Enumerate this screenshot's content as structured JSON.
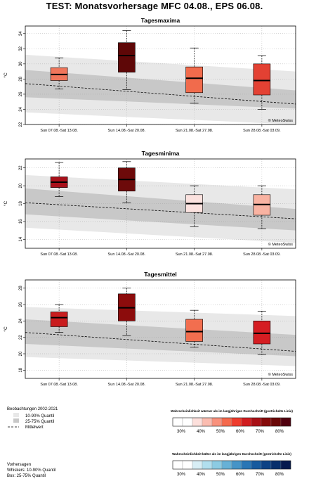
{
  "title": "TEST: Monatsvorhersage  MFC 04.08., EPS 06.08.",
  "copyright": "© MeteoSwiss",
  "chart_data": [
    {
      "type": "box",
      "title": "Tagesmaxima",
      "ylabel": "°C",
      "ylim": [
        22,
        35
      ],
      "yticks": [
        22,
        24,
        26,
        28,
        30,
        32,
        34
      ],
      "grid": true,
      "categories": [
        "Sun 07.08.-Sat 13.08.",
        "Sun 14.08.-Sat 20.08.",
        "Sun 21.08.-Sat 27.08.",
        "Sun 28.08.-Sat 03.09."
      ],
      "boxes": [
        {
          "whisker_low": 26.7,
          "q1": 27.8,
          "median": 28.6,
          "q3": 29.5,
          "whisker_high": 30.8,
          "color": "#f0765b"
        },
        {
          "whisker_low": 26.6,
          "q1": 28.9,
          "median": 31.1,
          "q3": 32.8,
          "whisker_high": 34.4,
          "color": "#5e0707"
        },
        {
          "whisker_low": 24.8,
          "q1": 26.2,
          "median": 28.1,
          "q3": 29.6,
          "whisker_high": 32.1,
          "color": "#f16b4c"
        },
        {
          "whisker_low": 24.0,
          "q1": 25.9,
          "median": 27.8,
          "q3": 30.0,
          "whisker_high": 31.1,
          "color": "#e34133"
        }
      ],
      "climatology": {
        "categories_x": [
          0.5,
          4.5
        ],
        "q10": [
          23.6,
          22.0
        ],
        "q25": [
          25.6,
          24.1
        ],
        "mean": [
          27.4,
          24.7
        ],
        "q75": [
          29.2,
          26.5
        ],
        "q90": [
          31.2,
          29.0
        ]
      }
    },
    {
      "type": "box",
      "title": "Tagesminima",
      "ylabel": "°C",
      "ylim": [
        13,
        23
      ],
      "yticks": [
        14,
        16,
        18,
        20,
        22
      ],
      "grid": true,
      "categories": [
        "Sun 07.08.-Sat 13.08.",
        "Sun 14.08.-Sat 20.08.",
        "Sun 21.08.-Sat 27.08.",
        "Sun 28.08.-Sat 03.09."
      ],
      "boxes": [
        {
          "whisker_low": 18.8,
          "q1": 19.8,
          "median": 20.4,
          "q3": 21.0,
          "whisker_high": 22.6,
          "color": "#a8101a"
        },
        {
          "whisker_low": 18.1,
          "q1": 19.4,
          "median": 20.7,
          "q3": 22.0,
          "whisker_high": 22.7,
          "color": "#6d0a0a"
        },
        {
          "whisker_low": 15.4,
          "q1": 17.0,
          "median": 18.0,
          "q3": 19.0,
          "whisker_high": 20.0,
          "color": "#fbe2df"
        },
        {
          "whisker_low": 15.2,
          "q1": 16.7,
          "median": 17.9,
          "q3": 19.0,
          "whisker_high": 20.0,
          "color": "#f9b3a2"
        }
      ],
      "climatology": {
        "categories_x": [
          0.5,
          4.5
        ],
        "q10": [
          15.3,
          13.6
        ],
        "q25": [
          16.8,
          15.0
        ],
        "mean": [
          18.1,
          16.3
        ],
        "q75": [
          19.7,
          17.4
        ],
        "q90": [
          21.2,
          19.6
        ]
      }
    },
    {
      "type": "box",
      "title": "Tagesmittel",
      "ylabel": "°C",
      "ylim": [
        17,
        29
      ],
      "yticks": [
        18,
        20,
        22,
        24,
        26,
        28
      ],
      "grid": true,
      "categories": [
        "Sun 07.08.-Sat 13.08.",
        "Sun 14.08.-Sat 20.08.",
        "Sun 21.08.-Sat 27.08.",
        "Sun 28.08.-Sat 03.09."
      ],
      "boxes": [
        {
          "whisker_low": 22.6,
          "q1": 23.3,
          "median": 24.4,
          "q3": 25.1,
          "whisker_high": 26.0,
          "color": "#c91c1e"
        },
        {
          "whisker_low": 22.2,
          "q1": 24.0,
          "median": 25.6,
          "q3": 27.3,
          "whisker_high": 28.0,
          "color": "#8c0c0c"
        },
        {
          "whisker_low": 20.8,
          "q1": 21.5,
          "median": 22.7,
          "q3": 24.2,
          "whisker_high": 25.3,
          "color": "#f26e4f"
        },
        {
          "whisker_low": 19.9,
          "q1": 21.2,
          "median": 22.5,
          "q3": 24.0,
          "whisker_high": 25.2,
          "color": "#d51d22"
        }
      ],
      "climatology": {
        "categories_x": [
          0.5,
          4.5
        ],
        "q10": [
          19.6,
          18.5
        ],
        "q25": [
          21.2,
          19.7
        ],
        "mean": [
          22.6,
          20.3
        ],
        "q75": [
          24.2,
          22.3
        ],
        "q90": [
          25.7,
          24.6
        ]
      }
    }
  ],
  "legend_obs": {
    "title": "Beobachtungen 2002-2021",
    "items": [
      {
        "label": "10-90% Quantil",
        "color": "#e8e8e8"
      },
      {
        "label": "25-75% Quantil",
        "color": "#c8c8c8"
      },
      {
        "label": "Mittelwert",
        "style": "dashed"
      }
    ]
  },
  "legend_fc": {
    "title": "Vorhersagen",
    "lines": [
      "Whiskers: 10-90% Quantil",
      "Box: 25-75% Quantil"
    ]
  },
  "scale_warm": {
    "title": "Wahrscheinlichkeit wärmer als im langjährigen Durchschnitt (gestrichelte Linie)",
    "labels": [
      "30%",
      "40%",
      "50%",
      "60%",
      "70%",
      "80%"
    ],
    "colors": [
      "#ffffff",
      "#ffffff",
      "#fde0dc",
      "#fbbcb0",
      "#f9917c",
      "#f5694c",
      "#ef3b2c",
      "#d11c1f",
      "#a80f15",
      "#860a0a",
      "#6a0707",
      "#50000e"
    ]
  },
  "scale_cold": {
    "title": "Wahrscheinlichkeit kälter als im langjährigen Durchschnitt (gestrichelte Linie)",
    "labels": [
      "30%",
      "40%",
      "50%",
      "60%",
      "70%",
      "80%"
    ],
    "colors": [
      "#ffffff",
      "#ffffff",
      "#d8eef5",
      "#b1dfee",
      "#8ccbe3",
      "#67b1d6",
      "#4694c7",
      "#2a76b5",
      "#175a9e",
      "#0d4285",
      "#082f6b",
      "#061a4f"
    ]
  }
}
